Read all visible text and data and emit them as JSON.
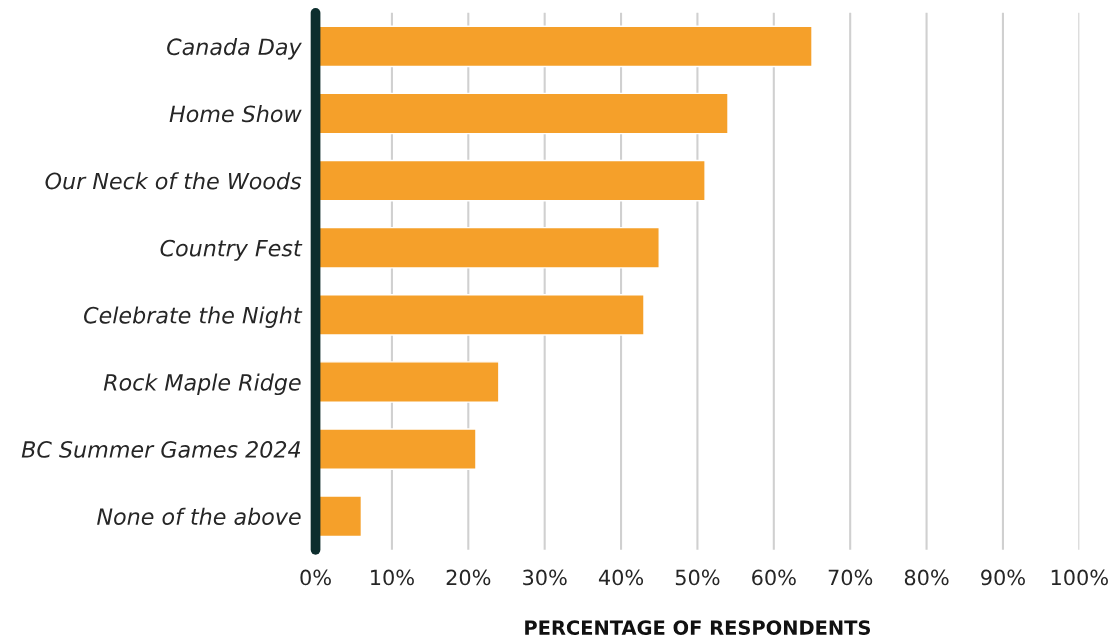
{
  "chart_data": {
    "type": "bar",
    "orientation": "horizontal",
    "xlabel": "PERCENTAGE OF RESPONDENTS",
    "categories": [
      "Canada Day",
      "Home Show",
      "Our Neck of the Woods",
      "Country Fest",
      "Celebrate the Night",
      "Rock Maple Ridge",
      "BC Summer Games 2024",
      "None of the above"
    ],
    "values": [
      65,
      54,
      51,
      45,
      43,
      24,
      21,
      6
    ],
    "color": "#f5a02a",
    "xlim": [
      0,
      100
    ],
    "xticks": [
      {
        "value": 0,
        "label": "0%"
      },
      {
        "value": 10,
        "label": "10%"
      },
      {
        "value": 20,
        "label": "20%"
      },
      {
        "value": 30,
        "label": "30%"
      },
      {
        "value": 40,
        "label": "40%"
      },
      {
        "value": 50,
        "label": "50%"
      },
      {
        "value": 60,
        "label": "60%"
      },
      {
        "value": 70,
        "label": "70%"
      },
      {
        "value": 80,
        "label": "80%"
      },
      {
        "value": 90,
        "label": "90%"
      },
      {
        "value": 100,
        "label": "100%"
      }
    ],
    "grid": "x",
    "legend": false
  }
}
